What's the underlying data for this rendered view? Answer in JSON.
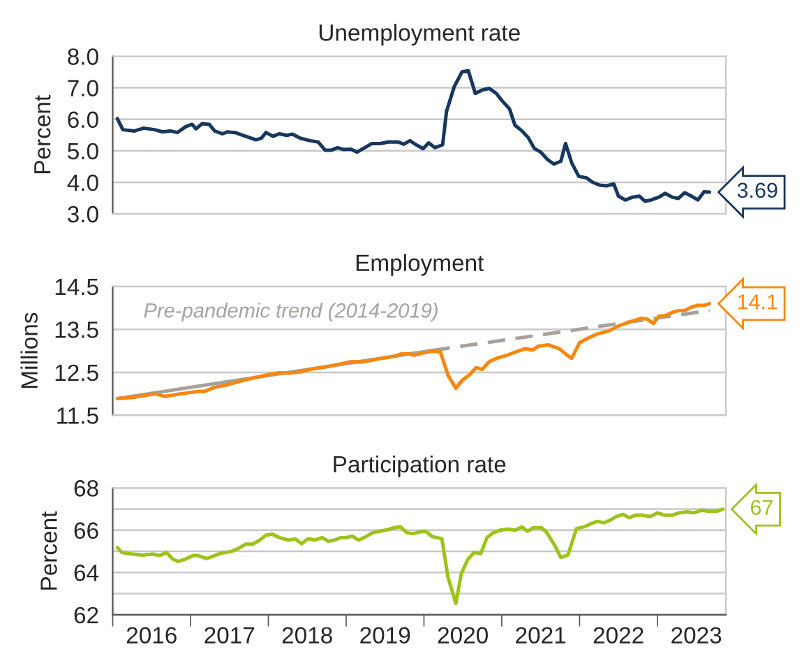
{
  "chart_data": [
    {
      "type": "line",
      "title": "Unemployment rate",
      "ylabel": "Percent",
      "xlim": [
        2016,
        2023.88
      ],
      "ylim": [
        3.0,
        8.0
      ],
      "yticks": [
        {
          "value": 3,
          "label": "3.0"
        },
        {
          "value": 4,
          "label": "4.0"
        },
        {
          "value": 5,
          "label": "5.0"
        },
        {
          "value": 6,
          "label": "6.0"
        },
        {
          "value": 7,
          "label": "7.0"
        },
        {
          "value": 8,
          "label": "8.0"
        }
      ],
      "tick_labels": "y",
      "grid": "y",
      "legend": false,
      "series": [
        {
          "color": "#17375e",
          "line_style": "solid",
          "x": [
            2016.06,
            2016.13,
            2016.28,
            2016.4,
            2016.54,
            2016.64,
            2016.74,
            2016.83,
            2016.94,
            2017.02,
            2017.07,
            2017.15,
            2017.24,
            2017.31,
            2017.41,
            2017.47,
            2017.57,
            2017.71,
            2017.84,
            2017.91,
            2017.97,
            2018.06,
            2018.14,
            2018.24,
            2018.31,
            2018.41,
            2018.54,
            2018.64,
            2018.73,
            2018.81,
            2018.89,
            2018.97,
            2019.06,
            2019.14,
            2019.24,
            2019.33,
            2019.44,
            2019.54,
            2019.67,
            2019.74,
            2019.82,
            2019.9,
            2019.99,
            2020.06,
            2020.14,
            2020.24,
            2020.29,
            2020.39,
            2020.49,
            2020.57,
            2020.66,
            2020.75,
            2020.84,
            2020.93,
            2021.0,
            2021.1,
            2021.17,
            2021.26,
            2021.34,
            2021.42,
            2021.5,
            2021.59,
            2021.67,
            2021.76,
            2021.82,
            2021.9,
            2021.99,
            2022.09,
            2022.17,
            2022.26,
            2022.35,
            2022.44,
            2022.5,
            2022.59,
            2022.68,
            2022.77,
            2022.84,
            2022.92,
            2023.02,
            2023.1,
            2023.19,
            2023.27,
            2023.35,
            2023.44,
            2023.52,
            2023.6,
            2023.67
          ],
          "values": [
            6.02,
            5.67,
            5.63,
            5.72,
            5.67,
            5.6,
            5.63,
            5.58,
            5.77,
            5.84,
            5.7,
            5.86,
            5.84,
            5.63,
            5.54,
            5.6,
            5.58,
            5.46,
            5.35,
            5.4,
            5.58,
            5.46,
            5.54,
            5.49,
            5.53,
            5.4,
            5.32,
            5.28,
            5.02,
            5.02,
            5.1,
            5.04,
            5.05,
            4.96,
            5.1,
            5.23,
            5.23,
            5.28,
            5.28,
            5.21,
            5.32,
            5.19,
            5.07,
            5.25,
            5.1,
            5.19,
            6.25,
            7.04,
            7.51,
            7.54,
            6.82,
            6.93,
            6.98,
            6.82,
            6.6,
            6.33,
            5.81,
            5.63,
            5.42,
            5.07,
            4.96,
            4.72,
            4.58,
            4.67,
            5.23,
            4.61,
            4.19,
            4.14,
            4.0,
            3.91,
            3.89,
            3.95,
            3.56,
            3.44,
            3.53,
            3.56,
            3.4,
            3.44,
            3.53,
            3.65,
            3.53,
            3.49,
            3.67,
            3.56,
            3.44,
            3.7,
            3.69
          ],
          "value_labels": [
            null,
            null,
            null,
            null,
            null,
            null,
            null,
            null,
            null,
            null,
            null,
            null,
            null,
            null,
            null,
            null,
            null,
            null,
            null,
            null,
            null,
            null,
            null,
            null,
            null,
            null,
            null,
            null,
            null,
            null,
            null,
            null,
            null,
            null,
            null,
            null,
            null,
            null,
            null,
            null,
            null,
            null,
            null,
            null,
            null,
            null,
            null,
            null,
            null,
            null,
            null,
            null,
            null,
            null,
            null,
            null,
            null,
            null,
            null,
            null,
            null,
            null,
            null,
            null,
            null,
            null,
            null,
            null,
            null,
            null,
            null,
            null,
            null,
            null,
            null,
            null,
            null,
            null,
            null,
            null,
            null,
            null,
            null,
            null,
            null,
            null,
            "3.69"
          ]
        }
      ]
    },
    {
      "type": "line",
      "title": "Employment",
      "ylabel": "Millions",
      "xlim": [
        2016,
        2023.88
      ],
      "ylim": [
        11.5,
        14.5
      ],
      "yticks": [
        11.5,
        12.5,
        13.5,
        14.5
      ],
      "tick_labels": "y",
      "grid": "y",
      "legend": false,
      "annotations": [
        "Pre-pandemic trend (2014-2019)"
      ],
      "series": [
        {
          "color": "#a6a19c",
          "line_style": "solid",
          "x": [
            2016.06,
            2020.11
          ],
          "values": [
            11.89,
            13.01
          ]
        },
        {
          "color": "#a6a19c",
          "line_style": "dashed",
          "x": [
            2020.11,
            2023.67
          ],
          "values": [
            13.01,
            13.94
          ]
        },
        {
          "color": "#f7870f",
          "line_style": "solid",
          "x": [
            2016.06,
            2016.28,
            2016.48,
            2016.54,
            2016.68,
            2016.87,
            2017.11,
            2017.17,
            2017.31,
            2017.47,
            2017.67,
            2017.81,
            2018.01,
            2018.14,
            2018.27,
            2018.41,
            2018.54,
            2018.81,
            2019.07,
            2019.21,
            2019.41,
            2019.61,
            2019.71,
            2019.81,
            2019.87,
            2020.01,
            2020.11,
            2020.21,
            2020.31,
            2020.41,
            2020.49,
            2020.59,
            2020.67,
            2020.75,
            2020.84,
            2020.94,
            2021.07,
            2021.2,
            2021.3,
            2021.4,
            2021.47,
            2021.6,
            2021.74,
            2021.84,
            2021.9,
            2022.0,
            2022.1,
            2022.24,
            2022.37,
            2022.5,
            2022.64,
            2022.8,
            2022.87,
            2022.95,
            2023.02,
            2023.1,
            2023.2,
            2023.28,
            2023.35,
            2023.44,
            2023.52,
            2023.6,
            2023.67
          ],
          "values": [
            11.89,
            11.92,
            11.98,
            12.0,
            11.94,
            12.0,
            12.06,
            12.05,
            12.15,
            12.21,
            12.31,
            12.37,
            12.45,
            12.49,
            12.48,
            12.51,
            12.57,
            12.65,
            12.75,
            12.74,
            12.81,
            12.87,
            12.93,
            12.93,
            12.9,
            12.96,
            12.99,
            12.98,
            12.43,
            12.13,
            12.31,
            12.45,
            12.61,
            12.57,
            12.75,
            12.83,
            12.9,
            12.99,
            13.05,
            13.02,
            13.11,
            13.14,
            13.05,
            12.9,
            12.83,
            13.19,
            13.29,
            13.4,
            13.46,
            13.58,
            13.67,
            13.76,
            13.74,
            13.64,
            13.81,
            13.82,
            13.9,
            13.94,
            13.94,
            14.02,
            14.06,
            14.06,
            14.1
          ],
          "value_labels": [
            null,
            null,
            null,
            null,
            null,
            null,
            null,
            null,
            null,
            null,
            null,
            null,
            null,
            null,
            null,
            null,
            null,
            null,
            null,
            null,
            null,
            null,
            null,
            null,
            null,
            null,
            null,
            null,
            null,
            null,
            null,
            null,
            null,
            null,
            null,
            null,
            null,
            null,
            null,
            null,
            null,
            null,
            null,
            null,
            null,
            null,
            null,
            null,
            null,
            null,
            null,
            null,
            null,
            null,
            null,
            null,
            null,
            null,
            null,
            null,
            null,
            null,
            "14.1"
          ]
        }
      ]
    },
    {
      "type": "line",
      "title": "Participation rate",
      "ylabel": "Percent",
      "xlim": [
        2016,
        2023.88
      ],
      "ylim": [
        62,
        68
      ],
      "yticks": [
        62,
        {
          "value": 63,
          "label": null
        },
        64,
        {
          "value": 65,
          "label": null
        },
        66,
        {
          "value": 67,
          "label": null
        },
        68
      ],
      "xticks": [
        {
          "value": 2016,
          "label": null
        },
        {
          "value": 2016.5,
          "label": "2016"
        },
        {
          "value": 2017,
          "label": null
        },
        {
          "value": 2017.5,
          "label": "2017"
        },
        {
          "value": 2018,
          "label": null
        },
        {
          "value": 2018.5,
          "label": "2018"
        },
        {
          "value": 2019,
          "label": null
        },
        {
          "value": 2019.5,
          "label": "2019"
        },
        {
          "value": 2020,
          "label": null
        },
        {
          "value": 2020.5,
          "label": "2020"
        },
        {
          "value": 2021,
          "label": null
        },
        {
          "value": 2021.5,
          "label": "2021"
        },
        {
          "value": 2022,
          "label": null
        },
        {
          "value": 2022.5,
          "label": "2022"
        },
        {
          "value": 2023,
          "label": null
        },
        {
          "value": 2023.5,
          "label": "2023"
        }
      ],
      "grid": "y",
      "legend": false,
      "series": [
        {
          "color": "#9cc31a",
          "line_style": "solid",
          "x": [
            2016.06,
            2016.12,
            2016.26,
            2016.38,
            2016.51,
            2016.6,
            2016.69,
            2016.77,
            2016.84,
            2016.94,
            2017.03,
            2017.09,
            2017.21,
            2017.31,
            2017.4,
            2017.52,
            2017.61,
            2017.71,
            2017.8,
            2017.89,
            2017.97,
            2018.05,
            2018.14,
            2018.26,
            2018.35,
            2018.43,
            2018.51,
            2018.6,
            2018.69,
            2018.77,
            2018.85,
            2018.93,
            2019.0,
            2019.08,
            2019.16,
            2019.25,
            2019.34,
            2019.43,
            2019.53,
            2019.62,
            2019.7,
            2019.78,
            2019.86,
            2019.96,
            2020.02,
            2020.11,
            2020.23,
            2020.31,
            2020.41,
            2020.48,
            2020.56,
            2020.64,
            2020.73,
            2020.81,
            2020.89,
            2020.98,
            2021.08,
            2021.17,
            2021.26,
            2021.33,
            2021.41,
            2021.51,
            2021.58,
            2021.68,
            2021.76,
            2021.85,
            2021.96,
            2022.06,
            2022.15,
            2022.23,
            2022.31,
            2022.39,
            2022.48,
            2022.56,
            2022.64,
            2022.72,
            2022.81,
            2022.91,
            2023.0,
            2023.09,
            2023.19,
            2023.28,
            2023.38,
            2023.47,
            2023.57,
            2023.66,
            2023.76,
            2023.84
          ],
          "values": [
            65.18,
            64.94,
            64.87,
            64.82,
            64.87,
            64.8,
            64.94,
            64.64,
            64.52,
            64.64,
            64.8,
            64.8,
            64.66,
            64.8,
            64.92,
            64.99,
            65.13,
            65.34,
            65.34,
            65.53,
            65.76,
            65.81,
            65.65,
            65.53,
            65.58,
            65.36,
            65.6,
            65.53,
            65.65,
            65.48,
            65.53,
            65.65,
            65.65,
            65.72,
            65.53,
            65.69,
            65.88,
            65.95,
            66.02,
            66.12,
            66.16,
            65.88,
            65.84,
            65.93,
            65.95,
            65.69,
            65.6,
            63.76,
            62.54,
            63.95,
            64.59,
            64.94,
            64.89,
            65.65,
            65.88,
            66.0,
            66.05,
            66.0,
            66.16,
            65.95,
            66.12,
            66.12,
            65.88,
            65.29,
            64.71,
            64.82,
            66.07,
            66.16,
            66.31,
            66.42,
            66.35,
            66.47,
            66.66,
            66.75,
            66.59,
            66.71,
            66.71,
            66.64,
            66.82,
            66.71,
            66.71,
            66.82,
            66.87,
            66.82,
            66.94,
            66.89,
            66.89,
            66.99
          ],
          "value_labels": [
            null,
            null,
            null,
            null,
            null,
            null,
            null,
            null,
            null,
            null,
            null,
            null,
            null,
            null,
            null,
            null,
            null,
            null,
            null,
            null,
            null,
            null,
            null,
            null,
            null,
            null,
            null,
            null,
            null,
            null,
            null,
            null,
            null,
            null,
            null,
            null,
            null,
            null,
            null,
            null,
            null,
            null,
            null,
            null,
            null,
            null,
            null,
            null,
            null,
            null,
            null,
            null,
            null,
            null,
            null,
            null,
            null,
            null,
            null,
            null,
            null,
            null,
            null,
            null,
            null,
            null,
            null,
            null,
            null,
            null,
            null,
            null,
            null,
            null,
            null,
            null,
            null,
            null,
            null,
            null,
            null,
            null,
            null,
            null,
            null,
            null,
            null,
            "67"
          ]
        }
      ]
    }
  ]
}
